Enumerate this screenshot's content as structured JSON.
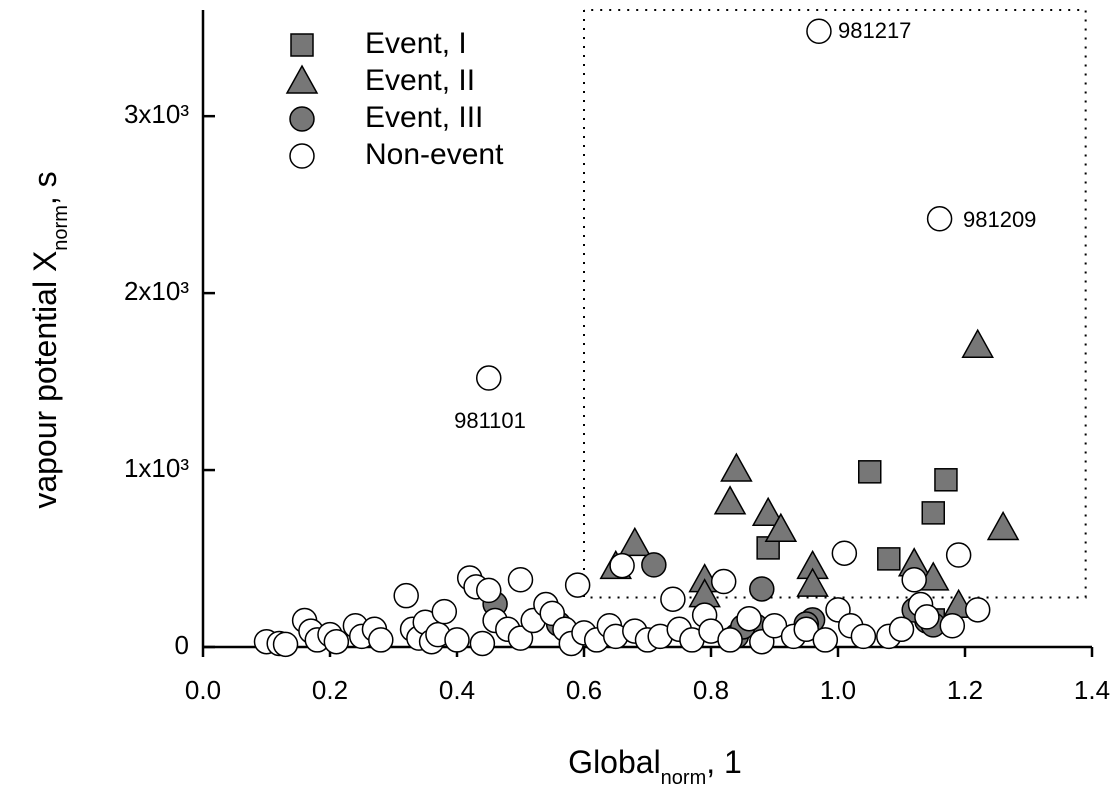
{
  "chart_data": {
    "type": "scatter",
    "xlabel_parts": [
      "Global",
      "norm",
      ", 1"
    ],
    "ylabel_parts": [
      "vapour potential X",
      "norm",
      ", s"
    ],
    "xlim": [
      0,
      1.4
    ],
    "xticks": [
      {
        "value": 0,
        "label": "0.0"
      },
      0.2,
      0.4,
      0.6,
      0.8,
      {
        "value": 1,
        "label": "1.0"
      },
      1.2,
      1.4
    ],
    "ylim": [
      0,
      3600
    ],
    "yticks": [
      0,
      {
        "value": 1000,
        "label": "1x10³"
      },
      {
        "value": 2000,
        "label": "2x10³"
      },
      {
        "value": 3000,
        "label": "3x10³"
      }
    ],
    "legend": "upper left",
    "threshold_box": {
      "xlim": [
        0.6,
        1.39
      ],
      "ylim": [
        280,
        3600
      ]
    },
    "annotations": [
      "981217",
      "981209",
      "981101"
    ],
    "series": [
      {
        "name": "Event, I",
        "marker": "square",
        "color": "#777777",
        "x": [
          1.05,
          1.17,
          1.15,
          1.08,
          0.89,
          1.15
        ],
        "values": [
          990,
          945,
          758,
          498,
          560,
          153
        ]
      },
      {
        "name": "Event, II",
        "marker": "triangle",
        "color": "#777777",
        "x": [
          0.84,
          0.83,
          0.89,
          0.91,
          1.22,
          1.26,
          0.68,
          0.65,
          0.96,
          0.96,
          0.79,
          0.79,
          1.12,
          1.15,
          1.19
        ],
        "values": [
          1000,
          815,
          750,
          660,
          1700,
          670,
          580,
          450,
          450,
          350,
          375,
          290,
          465,
          385,
          230
        ]
      },
      {
        "name": "Event, III",
        "marker": "circle",
        "color": "#777777",
        "x": [
          0.71,
          0.46,
          0.56,
          0.88,
          0.87,
          0.96,
          0.95,
          0.84,
          0.85,
          1.14,
          1.12,
          1.15
        ],
        "values": [
          464,
          243,
          130,
          328,
          119,
          153,
          130,
          62,
          113,
          147,
          209,
          125
        ]
      },
      {
        "name": "Non-event",
        "marker": "circle",
        "color": "#ffffff",
        "x": [
          0.1,
          0.12,
          0.13,
          0.16,
          0.17,
          0.18,
          0.2,
          0.21,
          0.24,
          0.25,
          0.27,
          0.28,
          0.32,
          0.33,
          0.34,
          0.35,
          0.36,
          0.37,
          0.38,
          0.4,
          0.42,
          0.43,
          0.44,
          0.45,
          0.46,
          0.48,
          0.5,
          0.5,
          0.52,
          0.54,
          0.55,
          0.57,
          0.58,
          0.59,
          0.6,
          0.62,
          0.64,
          0.65,
          0.66,
          0.68,
          0.7,
          0.72,
          0.74,
          0.75,
          0.77,
          0.79,
          0.8,
          0.82,
          0.83,
          0.86,
          0.88,
          0.9,
          0.93,
          0.95,
          0.98,
          1.0,
          1.01,
          1.02,
          1.04,
          1.08,
          1.1,
          1.12,
          1.13,
          1.14,
          1.18,
          1.19,
          1.22,
          0.45,
          0.97,
          1.16
        ],
        "values": [
          30,
          20,
          15,
          150,
          90,
          40,
          70,
          30,
          120,
          60,
          100,
          40,
          290,
          100,
          50,
          140,
          30,
          70,
          200,
          40,
          390,
          340,
          20,
          320,
          150,
          100,
          380,
          50,
          150,
          240,
          190,
          100,
          20,
          350,
          80,
          40,
          120,
          60,
          460,
          90,
          40,
          60,
          270,
          100,
          40,
          180,
          90,
          370,
          40,
          160,
          30,
          120,
          60,
          100,
          40,
          210,
          530,
          120,
          60,
          60,
          100,
          380,
          240,
          170,
          120,
          520,
          210,
          1520,
          3480,
          2420
        ]
      }
    ]
  }
}
